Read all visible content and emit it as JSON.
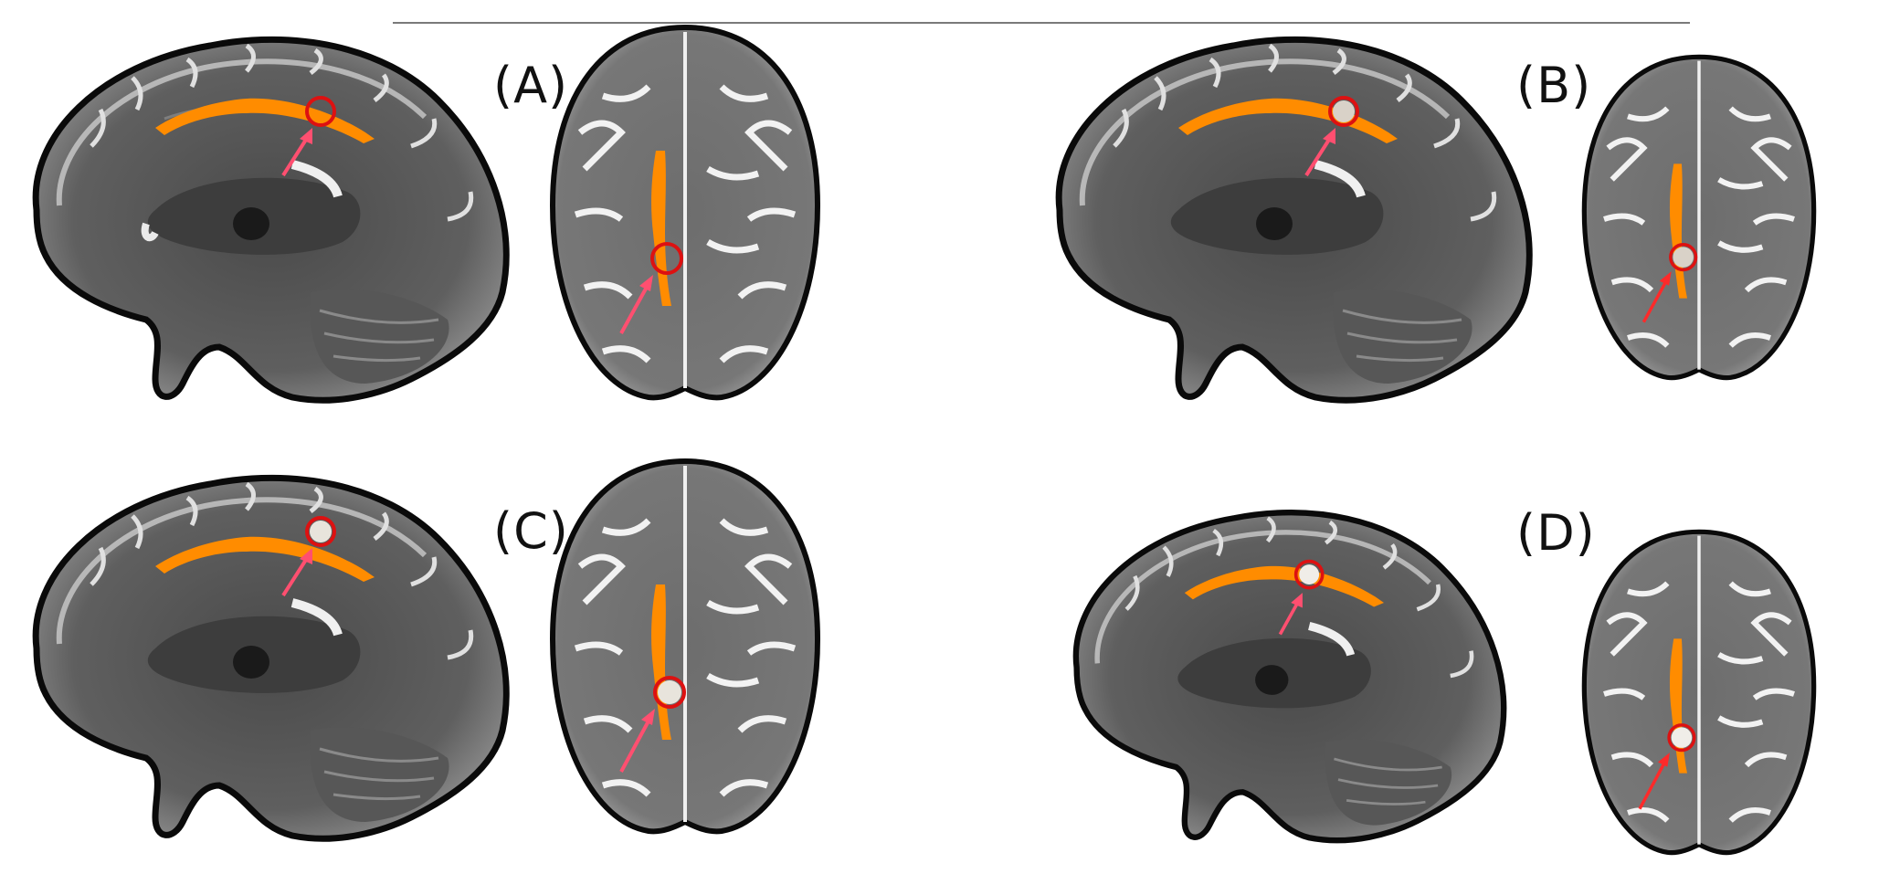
{
  "panels": [
    {
      "id": "A",
      "label": "(A)",
      "sagittal_lesion": "solid",
      "axial_lesion": "solid"
    },
    {
      "id": "B",
      "label": "(B)",
      "sagittal_lesion": "bright",
      "axial_lesion": "bright"
    },
    {
      "id": "C",
      "label": "(C)",
      "sagittal_lesion": "bright",
      "axial_lesion": "bright"
    },
    {
      "id": "D",
      "label": "(D)",
      "sagittal_lesion": "bright",
      "axial_lesion": "bright"
    }
  ],
  "colors": {
    "tract": "#ff8c00",
    "circle": "#dd1111",
    "arrow": "#ff4f70",
    "arrow_dark": "#ff2a2a",
    "brain_dark": "#3a3a3a",
    "brain_mid": "#6f6f6f",
    "brain_light": "#e8e8e8"
  }
}
